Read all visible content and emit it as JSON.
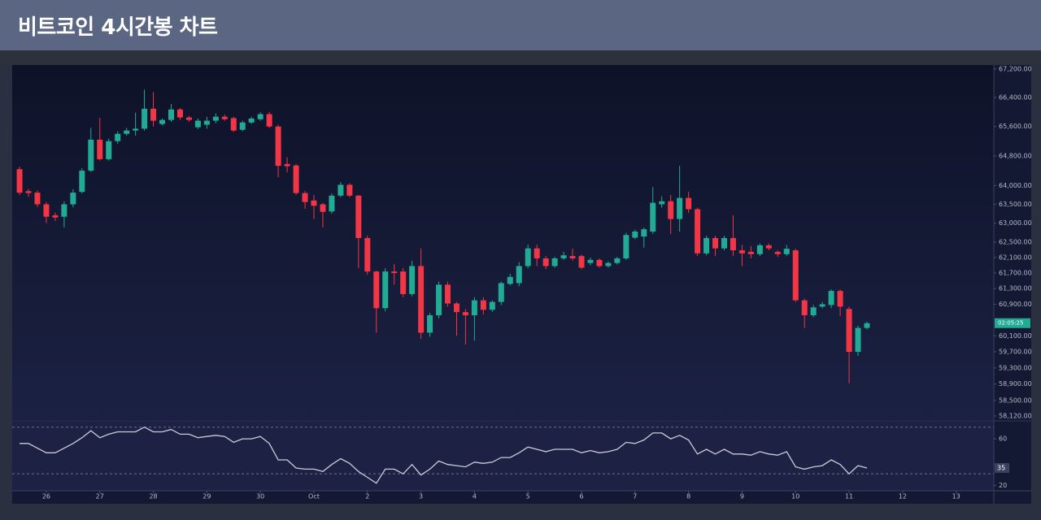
{
  "title": "비트코인 4시간봉 차트",
  "chart_data": [
    {
      "type": "candlestick",
      "log_scale": true,
      "up_color": "#22ab94",
      "down_color": "#f23645",
      "annotation": "02:05:25",
      "x": [
        -12,
        -8,
        -4,
        0,
        4,
        8,
        12,
        16,
        20,
        24,
        28,
        32,
        36,
        40,
        44,
        48,
        52,
        56,
        60,
        64,
        68,
        72,
        76,
        80,
        84,
        88,
        92,
        96,
        100,
        104,
        108,
        112,
        116,
        120,
        124,
        128,
        132,
        136,
        140,
        144,
        148,
        152,
        156,
        160,
        164,
        168,
        172,
        176,
        180,
        184,
        188,
        192,
        196,
        200,
        204,
        208,
        212,
        216,
        220,
        224,
        228,
        232,
        236,
        240,
        244,
        248,
        252,
        256,
        260,
        264,
        268,
        272,
        276,
        280,
        284,
        288,
        292,
        296,
        300,
        304,
        308,
        312,
        316,
        320,
        324,
        328,
        332,
        336,
        340,
        344,
        348,
        352,
        356,
        360,
        364,
        368
      ],
      "open": [
        64440,
        63850,
        63810,
        63500,
        63210,
        63170,
        63500,
        63830,
        64400,
        65240,
        64710,
        65200,
        65400,
        65490,
        65540,
        66090,
        65670,
        65780,
        66070,
        65850,
        65580,
        65650,
        65760,
        65870,
        65830,
        65510,
        65710,
        65800,
        65940,
        65600,
        64580,
        64540,
        63800,
        63600,
        63500,
        63310,
        63730,
        64020,
        63730,
        62610,
        61740,
        60800,
        61740,
        61740,
        61160,
        61880,
        60180,
        60620,
        61400,
        60920,
        60700,
        60620,
        61000,
        60760,
        60960,
        61420,
        61440,
        61880,
        62340,
        62080,
        61880,
        62080,
        62140,
        62140,
        61960,
        62040,
        61880,
        61960,
        62080,
        62620,
        62650,
        62780,
        63500,
        63580,
        63110,
        63670,
        63370,
        62210,
        62610,
        62340,
        62610,
        62290,
        62250,
        62190,
        62420,
        62250,
        62190,
        62290,
        61000,
        60620,
        60840,
        60880,
        61240,
        60780,
        59700,
        60300
      ],
      "high": [
        64510,
        63910,
        63870,
        63560,
        63280,
        63580,
        63900,
        64470,
        65560,
        65840,
        65270,
        65470,
        65560,
        65980,
        66620,
        66550,
        65820,
        66220,
        66110,
        65890,
        65820,
        65870,
        65960,
        65930,
        65870,
        65760,
        65870,
        65990,
        66000,
        65650,
        64760,
        64580,
        63850,
        63750,
        63540,
        63790,
        64090,
        64060,
        63750,
        62670,
        61760,
        61830,
        61930,
        61830,
        62020,
        62340,
        60680,
        61480,
        61480,
        60960,
        60780,
        61080,
        61080,
        61000,
        61480,
        61680,
        61980,
        62440,
        62440,
        62140,
        62120,
        62250,
        62330,
        62180,
        62100,
        62080,
        62000,
        62120,
        62750,
        62830,
        62890,
        63960,
        63710,
        63750,
        64530,
        63830,
        63410,
        62670,
        62670,
        62670,
        63210,
        62430,
        62400,
        62470,
        62470,
        62290,
        62430,
        62330,
        61040,
        60880,
        60960,
        61280,
        61280,
        60840,
        60360,
        60460
      ],
      "low": [
        63750,
        63700,
        63430,
        63000,
        63060,
        62890,
        63420,
        63790,
        64360,
        64670,
        64670,
        65130,
        65350,
        65350,
        65490,
        65600,
        65630,
        65730,
        65780,
        65730,
        65530,
        65540,
        65690,
        65760,
        65450,
        65470,
        65670,
        65760,
        65560,
        64220,
        64350,
        63750,
        63380,
        63110,
        62890,
        63250,
        63690,
        63690,
        61830,
        61660,
        60180,
        60720,
        61400,
        61080,
        61100,
        60020,
        60080,
        60540,
        60840,
        60100,
        59880,
        59980,
        60640,
        60700,
        60880,
        61380,
        61360,
        61820,
        61880,
        61800,
        61840,
        62040,
        62020,
        61800,
        61900,
        61840,
        61840,
        61920,
        62040,
        62580,
        62360,
        62720,
        63410,
        62720,
        62780,
        63270,
        62140,
        62160,
        62140,
        62290,
        62140,
        61880,
        62080,
        62140,
        62290,
        62120,
        62140,
        60960,
        60300,
        60570,
        60800,
        60800,
        60600,
        58920,
        59600,
        60260
      ],
      "close": [
        63810,
        63800,
        63500,
        63170,
        63150,
        63500,
        63810,
        64400,
        65240,
        64710,
        65200,
        65400,
        65490,
        65540,
        66090,
        65760,
        65780,
        66070,
        65850,
        65780,
        65760,
        65760,
        65870,
        65800,
        65490,
        65710,
        65820,
        65940,
        65600,
        64530,
        64520,
        63800,
        63560,
        63460,
        63300,
        63730,
        64020,
        63730,
        62610,
        61740,
        60800,
        61740,
        61700,
        61160,
        61880,
        60180,
        60620,
        61400,
        60920,
        60700,
        60620,
        61000,
        60760,
        60960,
        61440,
        61600,
        61880,
        62340,
        62080,
        61880,
        62080,
        62160,
        62080,
        61840,
        62040,
        61880,
        61960,
        62080,
        62690,
        62780,
        62840,
        63540,
        63580,
        63110,
        63670,
        63370,
        62210,
        62610,
        62340,
        62610,
        62290,
        62210,
        62190,
        62420,
        62340,
        62190,
        62330,
        61000,
        60620,
        60820,
        60900,
        61240,
        60840,
        59700,
        60300,
        60420
      ],
      "xlim": [
        -15.3,
        424.9
      ],
      "xticks": [
        {
          "value": 0,
          "label": "26"
        },
        {
          "value": 24,
          "label": "27"
        },
        {
          "value": 48,
          "label": "28"
        },
        {
          "value": 72,
          "label": "29"
        },
        {
          "value": 96,
          "label": "30"
        },
        {
          "value": 120,
          "label": "Oct"
        },
        {
          "value": 144,
          "label": "2"
        },
        {
          "value": 168,
          "label": "3"
        },
        {
          "value": 192,
          "label": "4"
        },
        {
          "value": 216,
          "label": "5"
        },
        {
          "value": 240,
          "label": "6"
        },
        {
          "value": 264,
          "label": "7"
        },
        {
          "value": 288,
          "label": "8"
        },
        {
          "value": 312,
          "label": "9"
        },
        {
          "value": 336,
          "label": "10"
        },
        {
          "value": 360,
          "label": "11"
        },
        {
          "value": 384,
          "label": "12"
        },
        {
          "value": 408,
          "label": "13"
        }
      ],
      "ylim": [
        58020,
        67310
      ],
      "yticks": [
        {
          "value": 67200,
          "label": "67,200.00"
        },
        {
          "value": 66400,
          "label": "66,400.00"
        },
        {
          "value": 65600,
          "label": "65,600.00"
        },
        {
          "value": 64800,
          "label": "64,800.00"
        },
        {
          "value": 64000,
          "label": "64,000.00"
        },
        {
          "value": 63500,
          "label": "63,500.00"
        },
        {
          "value": 63000,
          "label": "63,000.00"
        },
        {
          "value": 62500,
          "label": "62,500.00"
        },
        {
          "value": 62100,
          "label": "62,100.00"
        },
        {
          "value": 61700,
          "label": "61,700.00"
        },
        {
          "value": 61300,
          "label": "61,300.00"
        },
        {
          "value": 60900,
          "label": "60,900.00"
        },
        {
          "value": 60100,
          "label": "60,100.00"
        },
        {
          "value": 59700,
          "label": "59,700.00"
        },
        {
          "value": 59300,
          "label": "59,300.00"
        },
        {
          "value": 58900,
          "label": "58,900.00"
        },
        {
          "value": 58500,
          "label": "58,500.00"
        },
        {
          "value": 58120,
          "label": "58,120.00"
        }
      ]
    },
    {
      "type": "line",
      "color": "#c9ccd8",
      "x": [
        -12,
        -8,
        -4,
        0,
        4,
        8,
        12,
        16,
        20,
        24,
        28,
        32,
        36,
        40,
        44,
        48,
        52,
        56,
        60,
        64,
        68,
        72,
        76,
        80,
        84,
        88,
        92,
        96,
        100,
        104,
        108,
        112,
        116,
        120,
        124,
        128,
        132,
        136,
        140,
        144,
        148,
        152,
        156,
        160,
        164,
        168,
        172,
        176,
        180,
        184,
        188,
        192,
        196,
        200,
        204,
        208,
        212,
        216,
        220,
        224,
        228,
        232,
        236,
        240,
        244,
        248,
        252,
        256,
        260,
        264,
        268,
        272,
        276,
        280,
        284,
        288,
        292,
        296,
        300,
        304,
        308,
        312,
        316,
        320,
        324,
        328,
        332,
        336,
        340,
        344,
        348,
        352,
        356,
        360,
        364,
        368
      ],
      "values": [
        56,
        56,
        52,
        48,
        48,
        52,
        56,
        61,
        67,
        61,
        64,
        66,
        66,
        66,
        70,
        66,
        66,
        68,
        64,
        64,
        61,
        62,
        63,
        62,
        57,
        60,
        60,
        62,
        56,
        42,
        42,
        35,
        34,
        34,
        32,
        38,
        43,
        39,
        32,
        27,
        22,
        34,
        34,
        30,
        38,
        29,
        34,
        41,
        38,
        37,
        36,
        40,
        39,
        40,
        44,
        44,
        48,
        53,
        51,
        49,
        51,
        51,
        51,
        48,
        50,
        48,
        49,
        51,
        57,
        56,
        59,
        65,
        65,
        60,
        63,
        59,
        47,
        51,
        47,
        51,
        47,
        47,
        46,
        49,
        47,
        46,
        49,
        36,
        34,
        36,
        37,
        42,
        38,
        30,
        37,
        35
      ],
      "levels": [
        70,
        30
      ],
      "xlim": [
        -15.3,
        424.9
      ],
      "ylim": [
        15.5,
        74.7
      ],
      "yticks": [
        60,
        20
      ]
    }
  ]
}
